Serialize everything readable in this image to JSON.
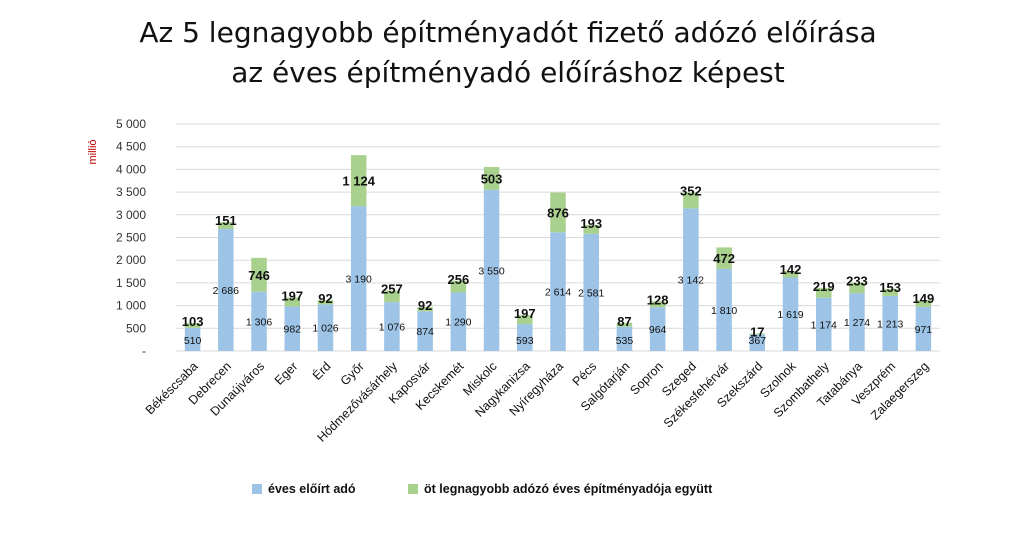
{
  "chart_data": {
    "type": "bar",
    "stacked": true,
    "title": [
      "Az 5 legnagyobb építményadót fizető adózó előírása",
      "az éves építményadó előíráshoz képest"
    ],
    "ylabel": "millió",
    "ylim": [
      0,
      5000
    ],
    "yticks": [
      0,
      500,
      1000,
      1500,
      2000,
      2500,
      3000,
      3500,
      4000,
      4500,
      5000
    ],
    "ytick_labels": [
      "-",
      "500",
      "1 000",
      "1 500",
      "2 000",
      "2 500",
      "3 000",
      "3 500",
      "4 000",
      "4 500",
      "5 000"
    ],
    "grid": true,
    "legend_position": "bottom",
    "categories": [
      "Békéscsaba",
      "Debrecen",
      "Dunaújváros",
      "Eger",
      "Érd",
      "Győr",
      "Hódmezővásárhely",
      "Kaposvár",
      "Kecskemét",
      "Miskolc",
      "Nagykanizsa",
      "Nyíregyháza",
      "Pécs",
      "Salgótarján",
      "Sopron",
      "Szeged",
      "Székesfehérvár",
      "Szekszárd",
      "Szolnok",
      "Szombathely",
      "Tatabánya",
      "Veszprém",
      "Zalaegerszeg"
    ],
    "series": [
      {
        "name": "éves előírt adó",
        "color": "#9dc3e6",
        "values": [
          510,
          2686,
          1306,
          982,
          1026,
          3190,
          1076,
          874,
          1290,
          3550,
          593,
          2614,
          2581,
          535,
          964,
          3142,
          1810,
          367,
          1619,
          1174,
          1274,
          1213,
          971
        ],
        "labels": [
          "510",
          "2 686",
          "1 306",
          "982",
          "1 026",
          "3 190",
          "1 076",
          "874",
          "1 290",
          "3 550",
          "593",
          "2 614",
          "2 581",
          "535",
          "964",
          "3 142",
          "1 810",
          "367",
          "1 619",
          "1 174",
          "1 274",
          "1 213",
          "971"
        ]
      },
      {
        "name": "öt legnagyobb adózó éves építményadója együtt",
        "color": "#a9d18e",
        "values": [
          103,
          151,
          746,
          197,
          92,
          1124,
          257,
          92,
          256,
          503,
          197,
          876,
          193,
          87,
          128,
          352,
          472,
          17,
          142,
          219,
          233,
          153,
          149
        ],
        "labels": [
          "103",
          "151",
          "746",
          "197",
          "92",
          "1 124",
          "257",
          "92",
          "256",
          "503",
          "197",
          "876",
          "193",
          "87",
          "128",
          "352",
          "472",
          "17",
          "142",
          "219",
          "233",
          "153",
          "149"
        ]
      }
    ]
  }
}
